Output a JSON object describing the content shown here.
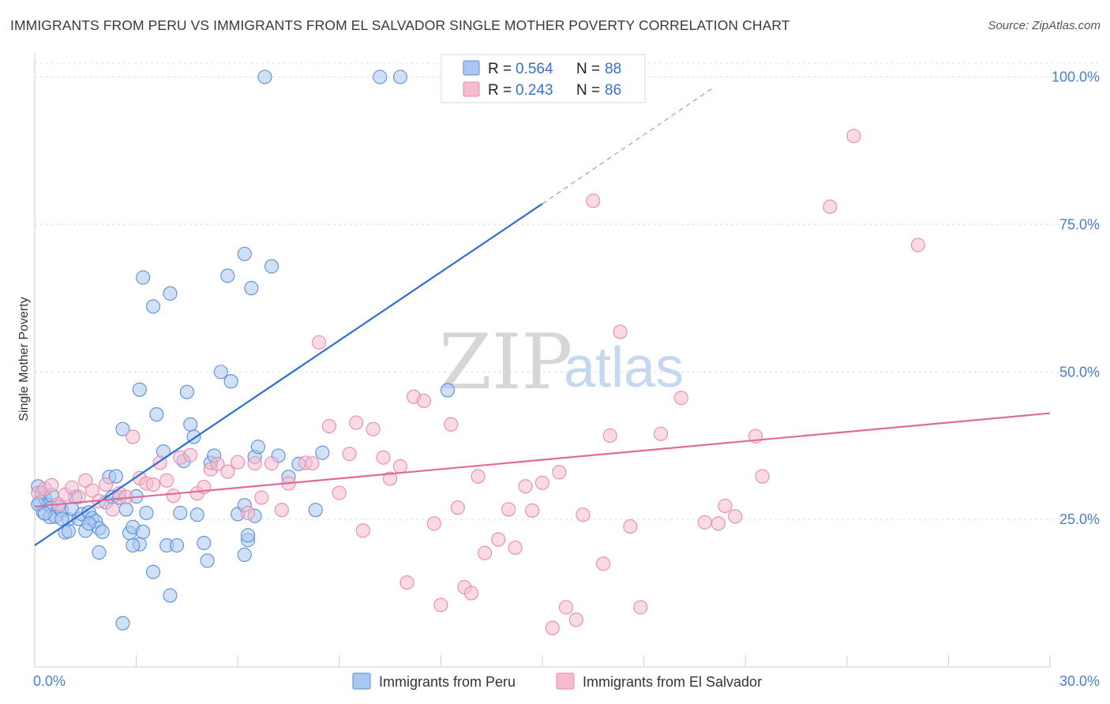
{
  "title": "IMMIGRANTS FROM PERU VS IMMIGRANTS FROM EL SALVADOR SINGLE MOTHER POVERTY CORRELATION CHART",
  "source": "Source: ZipAtlas.com",
  "watermark": {
    "zip": "ZIP",
    "atlas": "atlas"
  },
  "colors": {
    "peru_fill": "#a9c8f0",
    "peru_stroke": "#5a8fd8",
    "peru_line": "#2b6fd1",
    "els_fill": "#f5bcd0",
    "els_stroke": "#e98aaa",
    "els_line": "#e06b98",
    "tick": "#4a7fd0",
    "grid": "#dddddd"
  },
  "legend": {
    "peru": {
      "r_label": "R =",
      "r_value": "0.564",
      "n_label": "N =",
      "n_value": "88"
    },
    "els": {
      "r_label": "R =",
      "r_value": "0.243",
      "n_label": "N =",
      "n_value": "86"
    }
  },
  "chart_data": {
    "type": "scatter",
    "xlabel": "",
    "ylabel": "Single Mother Poverty",
    "xlim": [
      0,
      30
    ],
    "ylim": [
      0,
      105
    ],
    "x_ticks": [
      "0.0%",
      "30.0%"
    ],
    "y_ticks": [
      {
        "v": 25,
        "label": "25.0%"
      },
      {
        "v": 50,
        "label": "50.0%"
      },
      {
        "v": 75,
        "label": "75.0%"
      },
      {
        "v": 100,
        "label": "100.0%"
      }
    ],
    "legend_position": "top-center",
    "series": [
      {
        "name": "Immigrants from Peru",
        "trend": {
          "x0": 0,
          "y0": 20.6,
          "x1": 15.0,
          "y1": 78.5,
          "dash_x1": 20.0,
          "dash_y1": 98.0
        },
        "points": [
          [
            0.1,
            30.6
          ],
          [
            0.2,
            29.5
          ],
          [
            0.15,
            27.9
          ],
          [
            0.3,
            28.6
          ],
          [
            0.25,
            26.2
          ],
          [
            0.4,
            27.5
          ],
          [
            0.5,
            27.0
          ],
          [
            0.45,
            25.4
          ],
          [
            0.6,
            25.5
          ],
          [
            0.7,
            27.1
          ],
          [
            0.8,
            26.5
          ],
          [
            0.9,
            22.8
          ],
          [
            1.0,
            25.0
          ],
          [
            1.1,
            26.8
          ],
          [
            1.2,
            28.8
          ],
          [
            1.3,
            25.1
          ],
          [
            1.4,
            25.9
          ],
          [
            1.5,
            23.1
          ],
          [
            1.6,
            26.2
          ],
          [
            1.7,
            25.2
          ],
          [
            1.8,
            24.7
          ],
          [
            1.9,
            23.5
          ],
          [
            2.0,
            22.9
          ],
          [
            2.1,
            27.9
          ],
          [
            2.2,
            32.2
          ],
          [
            2.3,
            28.8
          ],
          [
            2.4,
            32.3
          ],
          [
            2.5,
            28.7
          ],
          [
            2.6,
            40.3
          ],
          [
            2.7,
            26.7
          ],
          [
            2.8,
            22.7
          ],
          [
            2.9,
            23.7
          ],
          [
            3.0,
            28.9
          ],
          [
            3.1,
            20.8
          ],
          [
            3.2,
            22.9
          ],
          [
            3.3,
            26.1
          ],
          [
            3.5,
            16.1
          ],
          [
            3.6,
            42.8
          ],
          [
            3.8,
            36.5
          ],
          [
            3.9,
            20.6
          ],
          [
            4.0,
            12.1
          ],
          [
            4.2,
            20.6
          ],
          [
            4.3,
            26.1
          ],
          [
            4.4,
            34.9
          ],
          [
            4.5,
            46.6
          ],
          [
            4.6,
            41.1
          ],
          [
            4.7,
            39.0
          ],
          [
            4.8,
            25.8
          ],
          [
            5.0,
            21.0
          ],
          [
            5.1,
            18.0
          ],
          [
            5.2,
            34.6
          ],
          [
            5.3,
            35.8
          ],
          [
            5.5,
            50.0
          ],
          [
            5.7,
            66.3
          ],
          [
            5.8,
            48.4
          ],
          [
            6.0,
            25.9
          ],
          [
            6.2,
            19.0
          ],
          [
            6.3,
            21.5
          ],
          [
            6.5,
            35.6
          ],
          [
            6.6,
            37.3
          ],
          [
            6.5,
            25.6
          ],
          [
            6.3,
            22.3
          ],
          [
            6.2,
            27.4
          ],
          [
            7.0,
            67.9
          ],
          [
            7.2,
            35.8
          ],
          [
            7.5,
            32.2
          ],
          [
            7.8,
            34.4
          ],
          [
            8.3,
            26.6
          ],
          [
            8.5,
            36.3
          ],
          [
            3.2,
            66.0
          ],
          [
            3.5,
            61.1
          ],
          [
            4.0,
            63.3
          ],
          [
            6.2,
            70.0
          ],
          [
            6.4,
            64.2
          ],
          [
            3.1,
            47.0
          ],
          [
            2.6,
            7.4
          ],
          [
            6.8,
            100.0
          ],
          [
            10.2,
            100.0
          ],
          [
            10.8,
            100.0
          ],
          [
            12.2,
            46.9
          ],
          [
            1.9,
            19.4
          ],
          [
            0.1,
            27.6
          ],
          [
            0.5,
            29.1
          ],
          [
            1.6,
            24.3
          ],
          [
            2.9,
            20.6
          ],
          [
            0.8,
            25.1
          ],
          [
            1.0,
            23.0
          ],
          [
            0.3,
            26.0
          ]
        ]
      },
      {
        "name": "Immigrants from El Salvador",
        "trend": {
          "x0": 0,
          "y0": 27.2,
          "x1": 30,
          "y1": 43.0
        },
        "points": [
          [
            0.1,
            29.5
          ],
          [
            0.3,
            30.2
          ],
          [
            0.5,
            30.8
          ],
          [
            0.7,
            27.6
          ],
          [
            0.9,
            29.2
          ],
          [
            1.1,
            30.4
          ],
          [
            1.3,
            28.8
          ],
          [
            1.5,
            31.6
          ],
          [
            1.7,
            29.9
          ],
          [
            1.9,
            28.1
          ],
          [
            2.1,
            30.9
          ],
          [
            2.3,
            26.7
          ],
          [
            2.5,
            29.4
          ],
          [
            2.7,
            28.8
          ],
          [
            2.9,
            39.0
          ],
          [
            3.1,
            32.0
          ],
          [
            3.3,
            31.1
          ],
          [
            3.5,
            30.9
          ],
          [
            3.7,
            34.6
          ],
          [
            3.9,
            31.6
          ],
          [
            4.1,
            29.0
          ],
          [
            4.3,
            35.5
          ],
          [
            4.6,
            35.9
          ],
          [
            4.8,
            29.4
          ],
          [
            5.0,
            30.5
          ],
          [
            5.2,
            33.5
          ],
          [
            5.4,
            34.4
          ],
          [
            5.7,
            33.1
          ],
          [
            6.0,
            34.7
          ],
          [
            6.3,
            26.1
          ],
          [
            6.5,
            34.5
          ],
          [
            6.7,
            28.7
          ],
          [
            7.0,
            34.5
          ],
          [
            7.3,
            26.6
          ],
          [
            7.5,
            31.1
          ],
          [
            8.0,
            34.6
          ],
          [
            8.2,
            34.5
          ],
          [
            8.4,
            55.0
          ],
          [
            8.7,
            40.8
          ],
          [
            9.0,
            29.5
          ],
          [
            9.3,
            36.1
          ],
          [
            9.5,
            41.4
          ],
          [
            9.7,
            23.1
          ],
          [
            10.0,
            40.3
          ],
          [
            10.3,
            35.5
          ],
          [
            10.5,
            31.9
          ],
          [
            10.8,
            34.0
          ],
          [
            11.0,
            14.3
          ],
          [
            11.2,
            45.8
          ],
          [
            11.5,
            45.1
          ],
          [
            11.8,
            24.3
          ],
          [
            12.0,
            10.5
          ],
          [
            12.3,
            41.1
          ],
          [
            12.5,
            27.0
          ],
          [
            12.7,
            13.5
          ],
          [
            12.9,
            12.5
          ],
          [
            13.1,
            32.3
          ],
          [
            13.3,
            19.3
          ],
          [
            13.7,
            21.6
          ],
          [
            14.0,
            26.7
          ],
          [
            14.2,
            20.2
          ],
          [
            14.5,
            30.6
          ],
          [
            14.7,
            26.5
          ],
          [
            15.0,
            31.2
          ],
          [
            15.3,
            6.6
          ],
          [
            15.5,
            33.0
          ],
          [
            15.7,
            10.1
          ],
          [
            16.0,
            8.0
          ],
          [
            16.2,
            25.8
          ],
          [
            16.5,
            79.0
          ],
          [
            16.8,
            17.5
          ],
          [
            17.0,
            39.2
          ],
          [
            17.3,
            56.8
          ],
          [
            17.6,
            23.8
          ],
          [
            17.9,
            10.1
          ],
          [
            18.5,
            39.5
          ],
          [
            19.1,
            45.6
          ],
          [
            19.8,
            24.5
          ],
          [
            20.2,
            24.3
          ],
          [
            20.4,
            27.3
          ],
          [
            20.7,
            25.5
          ],
          [
            21.3,
            39.1
          ],
          [
            21.5,
            32.3
          ],
          [
            23.5,
            78.0
          ],
          [
            24.2,
            90.0
          ],
          [
            26.1,
            71.5
          ]
        ]
      }
    ]
  },
  "bottom_legend": {
    "peru": "Immigrants from Peru",
    "els": "Immigrants from El Salvador"
  }
}
